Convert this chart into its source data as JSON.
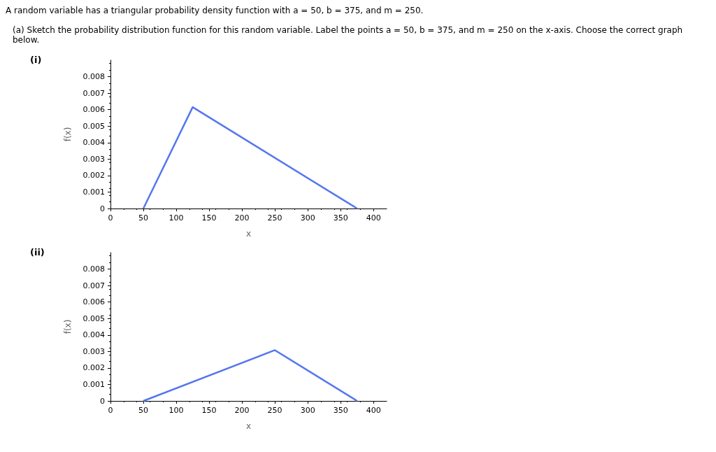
{
  "chart_data": [
    {
      "type": "line",
      "title": "(i)",
      "annotations": [
        "A random variable has a triangular probability density function with a = 50, b = 375, and m = 250.",
        "(a) Sketch the probability distribution function for this random variable. Label the points a = 50, b = 375, and m = 250 on the x-axis. Choose the correct graph below."
      ],
      "xlabel": "x",
      "ylabel": "f(x)",
      "x": [
        50,
        125,
        375
      ],
      "series": [
        {
          "color": "#5577ee",
          "values": [
            0,
            0.00615,
            0
          ]
        }
      ],
      "xlim": [
        0,
        420
      ],
      "xticks": [
        0,
        50,
        100,
        150,
        200,
        250,
        300,
        350,
        400
      ],
      "ylim": [
        0,
        0.009
      ],
      "yticks": [
        0,
        0.001,
        0.002,
        0.003,
        0.004,
        0.005,
        0.006,
        0.007,
        0.008
      ],
      "marker": "none"
    },
    {
      "type": "line",
      "title": "(ii)",
      "xlabel": "x",
      "ylabel": "f(x)",
      "x": [
        50,
        250,
        375
      ],
      "series": [
        {
          "color": "#5577ee",
          "values": [
            0,
            0.00308,
            0
          ]
        }
      ],
      "xlim": [
        0,
        420
      ],
      "xticks": [
        0,
        50,
        100,
        150,
        200,
        250,
        300,
        350,
        400
      ],
      "ylim": [
        0,
        0.009
      ],
      "yticks": [
        0,
        0.001,
        0.002,
        0.003,
        0.004,
        0.005,
        0.006,
        0.007,
        0.008
      ],
      "marker": "none"
    }
  ]
}
